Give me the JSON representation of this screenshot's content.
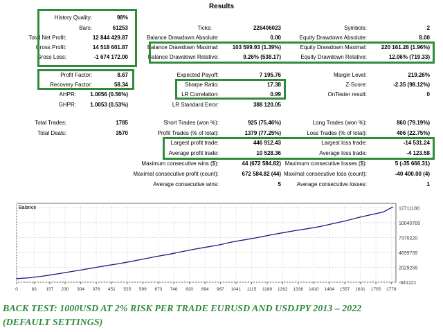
{
  "title": "Results",
  "stats": [
    {
      "id": "history-quality",
      "label": "History Quality:",
      "value": "98%",
      "lx": 20,
      "lw": 117,
      "vx": 137,
      "vw": 48,
      "y": 20
    },
    {
      "id": "bars",
      "label": "Bars:",
      "value": "61253",
      "lx": 20,
      "lw": 117,
      "vx": 137,
      "vw": 48,
      "y": 35
    },
    {
      "id": "total-net-profit",
      "label": "Total Net Profit:",
      "value": "12 844 429.87",
      "lx": 20,
      "lw": 80,
      "vx": 100,
      "vw": 85,
      "y": 49
    },
    {
      "id": "gross-profit",
      "label": "Gross Profit:",
      "value": "14 518 601.87",
      "lx": 20,
      "lw": 80,
      "vx": 100,
      "vw": 85,
      "y": 63
    },
    {
      "id": "gross-loss",
      "label": "Gross Loss:",
      "value": "-1 674 172.00",
      "lx": 20,
      "lw": 80,
      "vx": 100,
      "vw": 85,
      "y": 77
    },
    {
      "id": "ticks",
      "label": "Ticks:",
      "value": "226406023",
      "lx": 230,
      "lw": 80,
      "vx": 320,
      "vw": 86,
      "y": 35
    },
    {
      "id": "balance-dd-absolute",
      "label": "Balance Drawdown Absolute:",
      "value": "0.00",
      "lx": 190,
      "lw": 130,
      "vx": 320,
      "vw": 86,
      "y": 49
    },
    {
      "id": "balance-dd-maximal",
      "label": "Balance Drawdown Maximal:",
      "value": "103 599.93 (1.39%)",
      "lx": 190,
      "lw": 130,
      "vx": 320,
      "vw": 86,
      "y": 63
    },
    {
      "id": "balance-dd-relative",
      "label": "Balance Drawdown Relative:",
      "value": "9.26% (538.17)",
      "lx": 190,
      "lw": 130,
      "vx": 320,
      "vw": 86,
      "y": 77
    },
    {
      "id": "symbols",
      "label": "Symbols:",
      "value": "2",
      "lx": 440,
      "lw": 94,
      "vx": 534,
      "vw": 87,
      "y": 35
    },
    {
      "id": "equity-dd-absolute",
      "label": "Equity Drawdown Absolute:",
      "value": "8.00",
      "lx": 410,
      "lw": 124,
      "vx": 534,
      "vw": 87,
      "y": 49
    },
    {
      "id": "equity-dd-maximal",
      "label": "Equity Drawdown Maximal:",
      "value": "220 161.28 (1.96%)",
      "lx": 410,
      "lw": 124,
      "vx": 534,
      "vw": 87,
      "y": 63
    },
    {
      "id": "equity-dd-relative",
      "label": "Equity Drawdown Relative:",
      "value": "12.06% (719.33)",
      "lx": 410,
      "lw": 124,
      "vx": 534,
      "vw": 87,
      "y": 77
    },
    {
      "id": "profit-factor",
      "label": "Profit Factor:",
      "value": "8.67",
      "lx": 20,
      "lw": 117,
      "vx": 137,
      "vw": 48,
      "y": 103
    },
    {
      "id": "recovery-factor",
      "label": "Recovery Factor:",
      "value": "58.34",
      "lx": 20,
      "lw": 117,
      "vx": 137,
      "vw": 48,
      "y": 117
    },
    {
      "id": "ahpr",
      "label": "AHPR:",
      "value": "1.0056 (0.56%)",
      "lx": 20,
      "lw": 94,
      "vx": 114,
      "vw": 71,
      "y": 131
    },
    {
      "id": "ghpr",
      "label": "GHPR:",
      "value": "1.0053 (0.53%)",
      "lx": 20,
      "lw": 94,
      "vx": 114,
      "vw": 71,
      "y": 146
    },
    {
      "id": "expected-payoff",
      "label": "Expected Payoff:",
      "value": "7 195.76",
      "lx": 230,
      "lw": 90,
      "vx": 320,
      "vw": 86,
      "y": 103
    },
    {
      "id": "sharpe-ratio",
      "label": "Sharpe Ratio:",
      "value": "17.38",
      "lx": 230,
      "lw": 90,
      "vx": 320,
      "vw": 86,
      "y": 117
    },
    {
      "id": "lr-correlation",
      "label": "LR Correlation:",
      "value": "0.99",
      "lx": 230,
      "lw": 90,
      "vx": 320,
      "vw": 86,
      "y": 131
    },
    {
      "id": "lr-standard-error",
      "label": "LR Standard Error:",
      "value": "388 120.05",
      "lx": 230,
      "lw": 90,
      "vx": 320,
      "vw": 86,
      "y": 146
    },
    {
      "id": "margin-level",
      "label": "Margin Level:",
      "value": "219.26%",
      "lx": 440,
      "lw": 94,
      "vx": 534,
      "vw": 87,
      "y": 103
    },
    {
      "id": "z-score",
      "label": "Z-Score:",
      "value": "-2.35 (98.12%)",
      "lx": 440,
      "lw": 94,
      "vx": 534,
      "vw": 87,
      "y": 117
    },
    {
      "id": "ontester-result",
      "label": "OnTester result:",
      "value": "0",
      "lx": 440,
      "lw": 94,
      "vx": 534,
      "vw": 87,
      "y": 131
    },
    {
      "id": "total-trades",
      "label": "Total Trades:",
      "value": "1785",
      "lx": 20,
      "lw": 80,
      "vx": 100,
      "vw": 85,
      "y": 172
    },
    {
      "id": "total-deals",
      "label": "Total Deals:",
      "value": "3570",
      "lx": 20,
      "lw": 80,
      "vx": 100,
      "vw": 85,
      "y": 187
    },
    {
      "id": "short-trades",
      "label": "Short Trades (won %):",
      "value": "925 (75.46%)",
      "lx": 200,
      "lw": 120,
      "vx": 320,
      "vw": 86,
      "y": 172
    },
    {
      "id": "profit-trades",
      "label": "Profit Trades (% of total):",
      "value": "1379 (77.25%)",
      "lx": 200,
      "lw": 120,
      "vx": 320,
      "vw": 86,
      "y": 187
    },
    {
      "id": "largest-profit-trade",
      "label": "Largest profit trade:",
      "value": "446 912.43",
      "lx": 200,
      "lw": 120,
      "vx": 320,
      "vw": 86,
      "y": 201
    },
    {
      "id": "average-profit-trade",
      "label": "Average profit trade:",
      "value": "10 528.36",
      "lx": 200,
      "lw": 120,
      "vx": 320,
      "vw": 86,
      "y": 216
    },
    {
      "id": "max-consecutive-wins",
      "label": "Maximum consecutive wins ($):",
      "value": "44 (672 584.82)",
      "lx": 160,
      "lw": 160,
      "vx": 320,
      "vw": 86,
      "y": 231
    },
    {
      "id": "maximal-consecutive-profit",
      "label": "Maximal consecutive profit (count):",
      "value": "672 584.82 (44)",
      "lx": 160,
      "lw": 160,
      "vx": 320,
      "vw": 86,
      "y": 246
    },
    {
      "id": "average-consecutive-wins",
      "label": "Average consecutive wins:",
      "value": "5",
      "lx": 160,
      "lw": 160,
      "vx": 320,
      "vw": 86,
      "y": 261
    },
    {
      "id": "long-trades",
      "label": "Long Trades (won %):",
      "value": "860 (79.19%)",
      "lx": 420,
      "lw": 114,
      "vx": 534,
      "vw": 87,
      "y": 172
    },
    {
      "id": "loss-trades",
      "label": "Loss Trades (% of total):",
      "value": "406 (22.75%)",
      "lx": 420,
      "lw": 114,
      "vx": 534,
      "vw": 87,
      "y": 187
    },
    {
      "id": "largest-loss-trade",
      "label": "Largest loss trade:",
      "value": "-14 531.24",
      "lx": 420,
      "lw": 114,
      "vx": 534,
      "vw": 87,
      "y": 201
    },
    {
      "id": "average-loss-trade",
      "label": "Average loss trade:",
      "value": "-4 123.58",
      "lx": 420,
      "lw": 114,
      "vx": 534,
      "vw": 87,
      "y": 216
    },
    {
      "id": "max-consecutive-losses",
      "label": "Maximum consecutive losses ($):",
      "value": "5 (-35 666.31)",
      "lx": 390,
      "lw": 144,
      "vx": 534,
      "vw": 87,
      "y": 231
    },
    {
      "id": "maximal-consecutive-loss",
      "label": "Maximal consecutive loss (count):",
      "value": "-40 400.00 (4)",
      "lx": 390,
      "lw": 144,
      "vx": 534,
      "vw": 87,
      "y": 246
    },
    {
      "id": "average-consecutive-losses",
      "label": "Average consecutive losses:",
      "value": "1",
      "lx": 390,
      "lw": 144,
      "vx": 534,
      "vw": 87,
      "y": 261
    }
  ],
  "chart_data": {
    "type": "line",
    "title": "Balance",
    "x_ticks": [
      0,
      83,
      157,
      230,
      304,
      378,
      451,
      525,
      599,
      673,
      746,
      820,
      894,
      967,
      1041,
      1115,
      1189,
      1262,
      1336,
      1410,
      1484,
      1557,
      1631,
      1705,
      1778
    ],
    "y_ticks": [
      -641221,
      2029259,
      4699739,
      7370220,
      10040700,
      12711180
    ],
    "y_tick_labels": [
      "-641221",
      "2029259",
      "4699739",
      "7370220",
      "10040700",
      "12711180"
    ],
    "xlim": [
      0,
      1800
    ],
    "ylim": [
      -641221,
      13500000
    ],
    "series": [
      {
        "color": "#1a1a80",
        "x": [
          0,
          60,
          120,
          180,
          240,
          300,
          360,
          420,
          480,
          540,
          600,
          660,
          720,
          780,
          840,
          900,
          960,
          1020,
          1080,
          1140,
          1200,
          1260,
          1320,
          1380,
          1440,
          1500,
          1560,
          1620,
          1680,
          1740,
          1785
        ],
        "values": [
          1000,
          150000,
          420000,
          760000,
          1150000,
          1520000,
          1900000,
          2300000,
          2650000,
          3050000,
          3500000,
          3950000,
          4350000,
          4800000,
          5250000,
          5650000,
          6050000,
          6550000,
          6950000,
          7350000,
          7800000,
          8200000,
          8600000,
          8950000,
          9350000,
          9850000,
          10350000,
          10950000,
          11450000,
          11950000,
          12844000
        ]
      }
    ]
  },
  "caption": {
    "line1": "BACK TEST: 1000USD AT 2% RISK PER TRADE EURUSD AND USDJPY 2013 – 2022",
    "line2": "(DEFAULT SETTINGS)"
  }
}
